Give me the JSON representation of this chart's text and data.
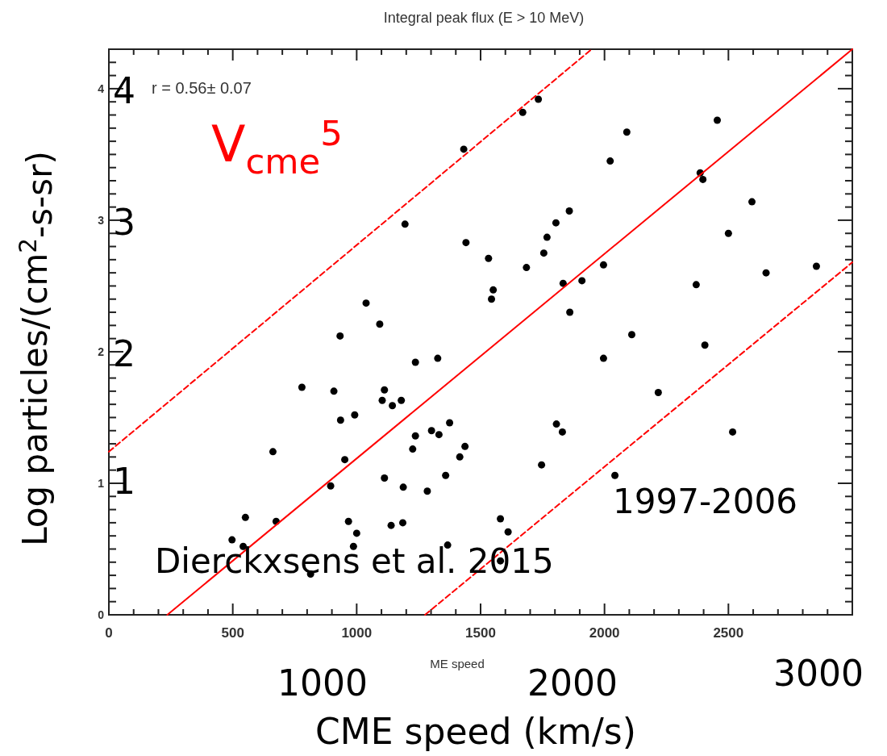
{
  "chart_data": {
    "type": "scatter",
    "title": "Integral peak flux (E > 10 MeV)",
    "xlabel": "CME speed (km/s)",
    "ylabel": "Log particles/(cm$^{2}$-s-sr)",
    "annotations": [
      "r =  0.56± 0.07",
      "V$_{cme}$$^{5}$",
      "Dierckxsens et al. 2015",
      "1997-2006",
      "4",
      "3",
      "2",
      "1",
      "1000",
      "2000",
      "3000",
      "ME speed"
    ],
    "xlim": [
      0,
      3000
    ],
    "ylim": [
      0,
      4.3
    ],
    "xticks": [
      0,
      {
        "value": 100,
        "label": null
      },
      {
        "value": 200,
        "label": null
      },
      {
        "value": 300,
        "label": null
      },
      {
        "value": 400,
        "label": null
      },
      500,
      {
        "value": 600,
        "label": null
      },
      {
        "value": 700,
        "label": null
      },
      {
        "value": 800,
        "label": null
      },
      {
        "value": 900,
        "label": null
      },
      {
        "value": 1000,
        "label": "1000"
      },
      {
        "value": 1100,
        "label": null
      },
      {
        "value": 1200,
        "label": null
      },
      {
        "value": 1300,
        "label": null
      },
      {
        "value": 1400,
        "label": null
      },
      1500,
      {
        "value": 1600,
        "label": null
      },
      {
        "value": 1700,
        "label": null
      },
      {
        "value": 1800,
        "label": null
      },
      {
        "value": 1900,
        "label": null
      },
      {
        "value": 2000,
        "label": "2000"
      },
      {
        "value": 2100,
        "label": null
      },
      {
        "value": 2200,
        "label": null
      },
      {
        "value": 2300,
        "label": null
      },
      {
        "value": 2400,
        "label": null
      },
      2500,
      {
        "value": 2600,
        "label": null
      },
      {
        "value": 2700,
        "label": null
      },
      {
        "value": 2800,
        "label": null
      },
      {
        "value": 2900,
        "label": null
      }
    ],
    "yticks": [
      0,
      {
        "value": 0.1,
        "label": null
      },
      {
        "value": 0.2,
        "label": null
      },
      {
        "value": 0.3,
        "label": null
      },
      {
        "value": 0.4,
        "label": null
      },
      {
        "value": 0.5,
        "label": null
      },
      {
        "value": 0.6,
        "label": null
      },
      {
        "value": 0.7,
        "label": null
      },
      {
        "value": 0.8,
        "label": null
      },
      {
        "value": 0.9,
        "label": null
      },
      1,
      {
        "value": 1.1,
        "label": null
      },
      {
        "value": 1.2,
        "label": null
      },
      {
        "value": 1.3,
        "label": null
      },
      {
        "value": 1.4,
        "label": null
      },
      {
        "value": 1.5,
        "label": null
      },
      {
        "value": 1.6,
        "label": null
      },
      {
        "value": 1.7,
        "label": null
      },
      {
        "value": 1.8,
        "label": null
      },
      {
        "value": 1.9,
        "label": null
      },
      2,
      {
        "value": 2.1,
        "label": null
      },
      {
        "value": 2.2,
        "label": null
      },
      {
        "value": 2.3,
        "label": null
      },
      {
        "value": 2.4,
        "label": null
      },
      {
        "value": 2.5,
        "label": null
      },
      {
        "value": 2.6,
        "label": null
      },
      {
        "value": 2.7,
        "label": null
      },
      {
        "value": 2.8,
        "label": null
      },
      {
        "value": 2.9,
        "label": null
      },
      3,
      {
        "value": 3.1,
        "label": null
      },
      {
        "value": 3.2,
        "label": null
      },
      {
        "value": 3.3,
        "label": null
      },
      {
        "value": 3.4,
        "label": null
      },
      {
        "value": 3.5,
        "label": null
      },
      {
        "value": 3.6,
        "label": null
      },
      {
        "value": 3.7,
        "label": null
      },
      {
        "value": 3.8,
        "label": null
      },
      {
        "value": 3.9,
        "label": null
      },
      4,
      {
        "value": 4.1,
        "label": null
      },
      {
        "value": 4.2,
        "label": null
      }
    ],
    "grid": false,
    "marker": "circle",
    "series": [
      {
        "color": "#000000",
        "x": [
          779,
          908,
          935,
          992,
          662,
          952,
          895,
          551,
          675,
          497,
          542,
          814,
          967,
          1000,
          987,
          1112,
          1103,
          1144,
          1180,
          1237,
          1327,
          1237,
          1226,
          1302,
          1332,
          1375,
          1437,
          1416,
          1359,
          1112,
          1188,
          1285,
          1139,
          1186,
          1367,
          1432,
          1195,
          1441,
          1038,
          1093,
          933,
          1670,
          1733,
          2090,
          2023,
          2455,
          2386,
          2397,
          2595,
          2500,
          2855,
          2652,
          2370,
          1532,
          1551,
          1544,
          1685,
          1755,
          1768,
          1804,
          1858,
          1996,
          1833,
          1909,
          1860,
          2110,
          2405,
          1996,
          2217,
          1806,
          1830,
          2517,
          1746,
          2042,
          1580,
          1611,
          1580
        ],
        "values": [
          1.73,
          1.7,
          1.48,
          1.52,
          1.24,
          1.18,
          0.98,
          0.74,
          0.71,
          0.57,
          0.52,
          0.31,
          0.71,
          0.62,
          0.52,
          1.71,
          1.63,
          1.59,
          1.63,
          1.92,
          1.95,
          1.36,
          1.26,
          1.4,
          1.37,
          1.46,
          1.28,
          1.2,
          1.06,
          1.04,
          0.97,
          0.94,
          0.68,
          0.7,
          0.53,
          3.54,
          2.97,
          2.83,
          2.37,
          2.21,
          2.12,
          3.82,
          3.92,
          3.67,
          3.45,
          3.76,
          3.36,
          3.31,
          3.14,
          2.9,
          2.65,
          2.6,
          2.51,
          2.71,
          2.47,
          2.4,
          2.64,
          2.75,
          2.87,
          2.98,
          3.07,
          2.66,
          2.52,
          2.54,
          2.3,
          2.13,
          2.05,
          1.95,
          1.69,
          1.45,
          1.39,
          1.39,
          1.14,
          1.06,
          0.73,
          0.63,
          0.41
        ]
      },
      {
        "type": "line",
        "color": "#ff0000",
        "line_style": "solid",
        "marker": "none",
        "x": [
          236,
          3000
        ],
        "values": [
          0,
          4.3
        ]
      },
      {
        "type": "line",
        "color": "#ff0000",
        "line_style": "dashed",
        "marker": "none",
        "x": [
          0,
          1948
        ],
        "values": [
          1.24,
          4.3
        ]
      },
      {
        "type": "line",
        "color": "#ff0000",
        "line_style": "dashed",
        "marker": "none",
        "x": [
          1276,
          3000
        ],
        "values": [
          0,
          2.68
        ]
      }
    ]
  }
}
